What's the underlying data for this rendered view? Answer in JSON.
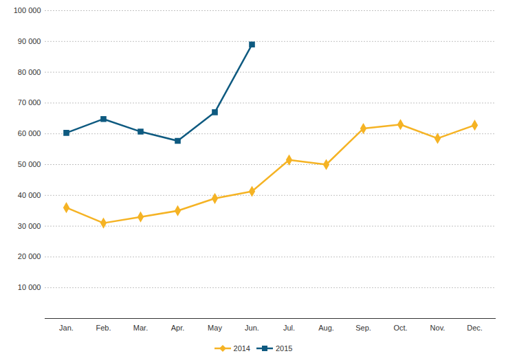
{
  "chart_data": {
    "type": "line",
    "categories": [
      "Jan.",
      "Feb.",
      "Mar.",
      "Apr.",
      "May",
      "Jun.",
      "Jul.",
      "Aug.",
      "Sep.",
      "Oct.",
      "Nov.",
      "Dec."
    ],
    "series": [
      {
        "name": "2014",
        "color": "#f5b324",
        "marker": "diamond",
        "values": [
          36000,
          31000,
          33000,
          35000,
          39000,
          41300,
          51500,
          50000,
          61700,
          63000,
          58500,
          62800
        ]
      },
      {
        "name": "2015",
        "color": "#0e5a80",
        "marker": "square",
        "values": [
          60300,
          64800,
          60700,
          57700,
          67000,
          89000,
          null,
          null,
          null,
          null,
          null,
          null
        ]
      }
    ],
    "ylim": [
      0,
      100000
    ],
    "yticks": [
      {
        "value": 10000,
        "label": "10 000"
      },
      {
        "value": 20000,
        "label": "20 000"
      },
      {
        "value": 30000,
        "label": "30 000"
      },
      {
        "value": 40000,
        "label": "40 000"
      },
      {
        "value": 50000,
        "label": "50 000"
      },
      {
        "value": 60000,
        "label": "60 000"
      },
      {
        "value": 70000,
        "label": "70 000"
      },
      {
        "value": 80000,
        "label": "80 000"
      },
      {
        "value": 90000,
        "label": "90 000"
      },
      {
        "value": 100000,
        "label": "100 000"
      }
    ],
    "grid": true,
    "legend": "bottom"
  }
}
